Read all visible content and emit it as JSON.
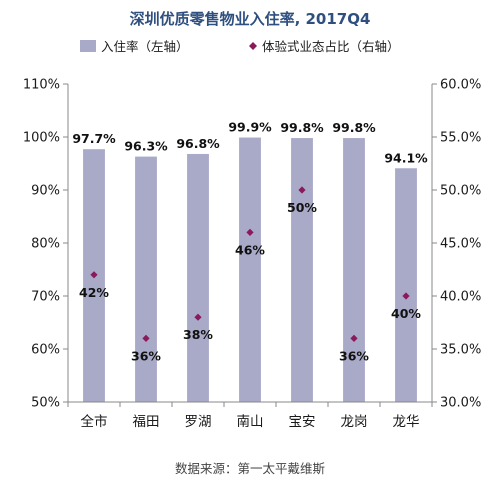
{
  "chart_data": {
    "type": "bar",
    "title": "深圳优质零售物业入住率, 2017Q4",
    "categories": [
      "全市",
      "福田",
      "罗湖",
      "南山",
      "宝安",
      "龙岗",
      "龙华"
    ],
    "series": [
      {
        "name": "入住率（左轴）",
        "type": "bar",
        "axis": "left",
        "values": [
          97.7,
          96.3,
          96.8,
          99.9,
          99.8,
          99.8,
          94.1
        ],
        "labels": [
          "97.7%",
          "96.3%",
          "96.8%",
          "99.9%",
          "99.8%",
          "99.8%",
          "94.1%"
        ]
      },
      {
        "name": "体验式业态占比（右轴）",
        "type": "scatter",
        "axis": "right",
        "values": [
          42,
          36,
          38,
          46,
          50,
          36,
          40
        ],
        "labels": [
          "42%",
          "36%",
          "38%",
          "46%",
          "50%",
          "36%",
          "40%"
        ]
      }
    ],
    "y_left": {
      "range": [
        50,
        110
      ],
      "ticks": [
        "50%",
        "60%",
        "70%",
        "80%",
        "90%",
        "100%",
        "110%"
      ]
    },
    "y_right": {
      "range": [
        30,
        60
      ],
      "ticks": [
        "30.0%",
        "35.0%",
        "40.0%",
        "45.0%",
        "50.0%",
        "55.0%",
        "60.0%"
      ]
    },
    "legend_position": "top",
    "grid": false
  },
  "source": "数据来源：第一太平戴维斯",
  "colors": {
    "bar": "#a9a9c8",
    "marker": "#8b1a5a",
    "axis": "#888888",
    "title": "#2f4f7f"
  }
}
